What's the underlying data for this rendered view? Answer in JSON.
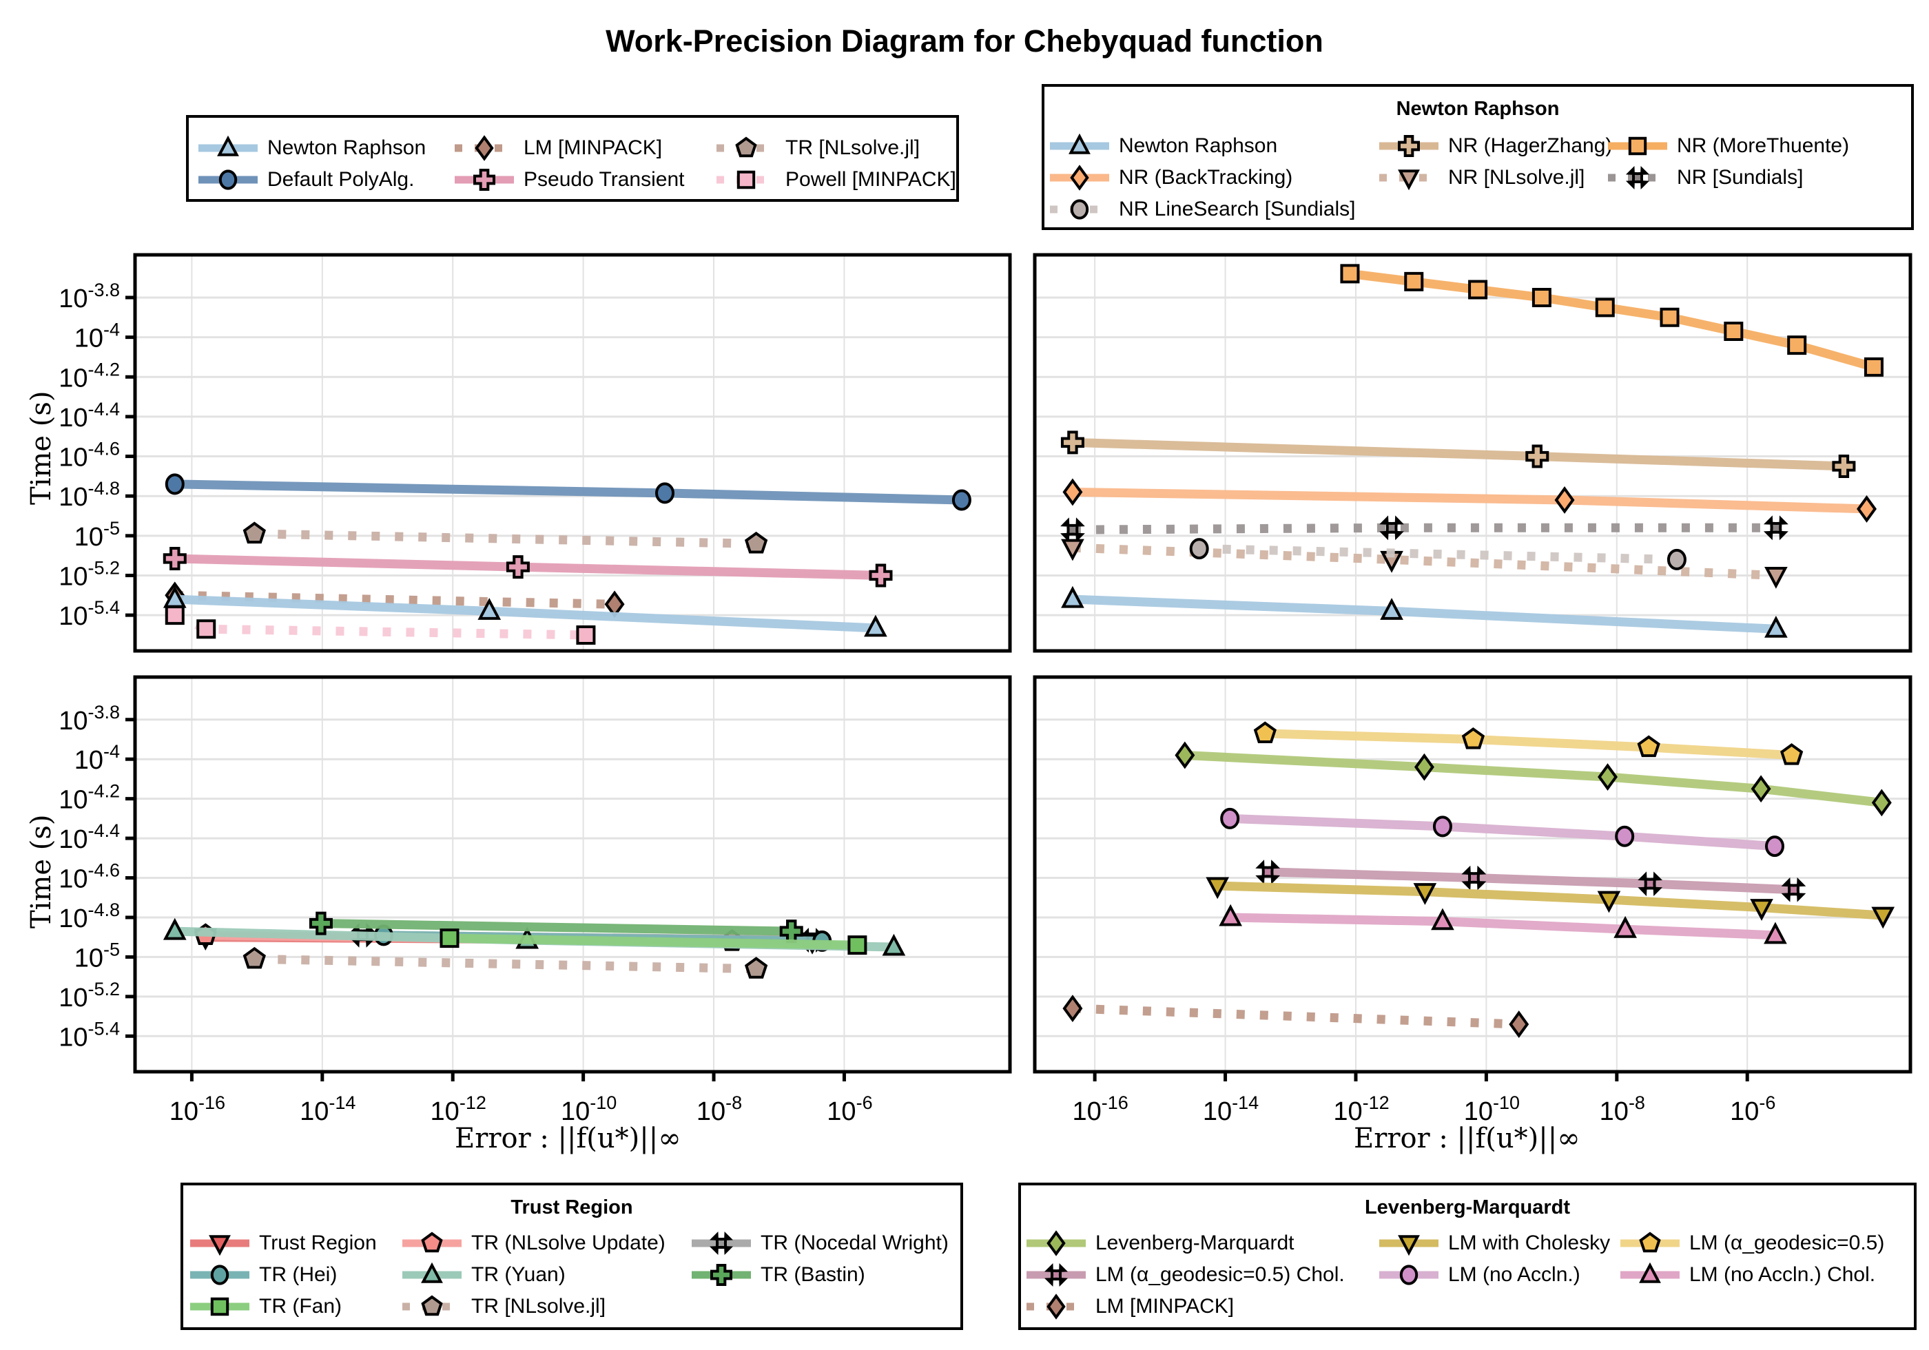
{
  "title": "Work-Precision Diagram for Chebyquad function",
  "axes": {
    "ylabel": "Time (s)",
    "xlabel": "Error : ||f(u*)||∞",
    "xticks": [
      -16,
      -14,
      -12,
      -10,
      -8,
      -6
    ],
    "yticks": [
      -3.8,
      -4,
      -4.2,
      -4.4,
      -4.6,
      -4.8,
      -5,
      -5.2,
      -5.4
    ]
  },
  "legends": {
    "general": {
      "title": "",
      "items": [
        {
          "label": "Newton Raphson",
          "series": "nr"
        },
        {
          "label": "LM [MINPACK]",
          "series": "lm_minpack"
        },
        {
          "label": "TR [NLsolve.jl]",
          "series": "tr_nlsolve"
        },
        {
          "label": "Default PolyAlg.",
          "series": "polyalg"
        },
        {
          "label": "Pseudo Transient",
          "series": "pseudo"
        },
        {
          "label": "Powell [MINPACK]",
          "series": "powell"
        }
      ]
    },
    "newton": {
      "title": "Newton Raphson",
      "items": [
        {
          "label": "Newton Raphson",
          "series": "nr"
        },
        {
          "label": "NR (HagerZhang)",
          "series": "nr_hz"
        },
        {
          "label": "NR (MoreThuente)",
          "series": "nr_mt"
        },
        {
          "label": "NR (BackTracking)",
          "series": "nr_bt"
        },
        {
          "label": "NR [NLsolve.jl]",
          "series": "nr_nlsolve"
        },
        {
          "label": "NR [Sundials]",
          "series": "nr_sundials"
        },
        {
          "label": "NR LineSearch [Sundials]",
          "series": "nr_ls_sundials"
        }
      ]
    },
    "trust": {
      "title": "Trust Region",
      "items": [
        {
          "label": "Trust Region",
          "series": "tr"
        },
        {
          "label": "TR (NLsolve Update)",
          "series": "tr_nlupdate"
        },
        {
          "label": "TR (Nocedal Wright)",
          "series": "tr_nw"
        },
        {
          "label": "TR (Hei)",
          "series": "tr_hei"
        },
        {
          "label": "TR (Yuan)",
          "series": "tr_yuan"
        },
        {
          "label": "TR (Bastin)",
          "series": "tr_bastin"
        },
        {
          "label": "TR (Fan)",
          "series": "tr_fan"
        },
        {
          "label": "TR [NLsolve.jl]",
          "series": "tr_nlsolve"
        }
      ]
    },
    "lm": {
      "title": "Levenberg-Marquardt",
      "items": [
        {
          "label": "Levenberg-Marquardt",
          "series": "lm"
        },
        {
          "label": "LM with Cholesky",
          "series": "lm_chol"
        },
        {
          "label": "LM (α_geodesic=0.5)",
          "series": "lm_geo"
        },
        {
          "label": "LM (α_geodesic=0.5) Chol.",
          "series": "lm_geo_chol"
        },
        {
          "label": "LM (no Accln.)",
          "series": "lm_noacc"
        },
        {
          "label": "LM (no Accln.) Chol.",
          "series": "lm_noacc_chol"
        },
        {
          "label": "LM [MINPACK]",
          "series": "lm_minpack"
        }
      ]
    }
  },
  "styles": {
    "nr": {
      "color": "#a6c8e0",
      "marker": "triangle-up",
      "dash": false
    },
    "polyalg": {
      "color": "#6f92b8",
      "fill": "#4e79a7",
      "marker": "circle",
      "dash": false
    },
    "lm_minpack": {
      "color": "#c09a8a",
      "fill": "#b08070",
      "marker": "diamond",
      "dash": true
    },
    "pseudo": {
      "color": "#e39db4",
      "marker": "cross",
      "dash": false
    },
    "tr_nlsolve": {
      "color": "#c9b0a6",
      "fill": "#b09a90",
      "marker": "pentagon",
      "dash": true
    },
    "powell": {
      "color": "#f8c8d6",
      "fill": "#f4b6c8",
      "marker": "square",
      "dash": true
    },
    "nr_hz": {
      "color": "#d8b894",
      "marker": "cross",
      "dash": false
    },
    "nr_mt": {
      "color": "#f6ae63",
      "marker": "square",
      "dash": false
    },
    "nr_bt": {
      "color": "#fbb88a",
      "fill": "#fbaa70",
      "marker": "diamond",
      "dash": false
    },
    "nr_nlsolve": {
      "color": "#d2b4a3",
      "fill": "#c4a090",
      "marker": "triangle-down",
      "dash": true
    },
    "nr_sundials": {
      "color": "#9b9494",
      "fill": "#8c8484",
      "marker": "x",
      "dash": true
    },
    "nr_ls_sundials": {
      "color": "#cfc6c3",
      "fill": "#b9b0ad",
      "marker": "circle",
      "dash": true
    },
    "tr": {
      "color": "#e87c7c",
      "fill": "#e66060",
      "marker": "triangle-down",
      "dash": false
    },
    "tr_nlupdate": {
      "color": "#f6a3a0",
      "fill": "#f48c88",
      "marker": "pentagon",
      "dash": false
    },
    "tr_nw": {
      "color": "#aaaaaa",
      "fill": "#999999",
      "marker": "x",
      "dash": false
    },
    "tr_hei": {
      "color": "#7ab3b3",
      "fill": "#60a3a3",
      "marker": "circle",
      "dash": false
    },
    "tr_yuan": {
      "color": "#9ccab8",
      "fill": "#7fbba6",
      "marker": "triangle-up",
      "dash": false
    },
    "tr_bastin": {
      "color": "#72b272",
      "fill": "#5aa85a",
      "marker": "cross",
      "dash": false
    },
    "tr_fan": {
      "color": "#8cce80",
      "fill": "#70c060",
      "marker": "square",
      "dash": false
    },
    "lm": {
      "color": "#b0c878",
      "fill": "#9cb85a",
      "marker": "diamond",
      "dash": false
    },
    "lm_chol": {
      "color": "#d4ba60",
      "fill": "#c8a830",
      "marker": "triangle-down",
      "dash": false
    },
    "lm_geo": {
      "color": "#f0d488",
      "fill": "#f0c050",
      "marker": "pentagon",
      "dash": false
    },
    "lm_geo_chol": {
      "color": "#c89cb0",
      "fill": "#c080a0",
      "marker": "x",
      "dash": false
    },
    "lm_noacc": {
      "color": "#d8b0d0",
      "fill": "#d090c8",
      "marker": "circle",
      "dash": false
    },
    "lm_noacc_chol": {
      "color": "#e0a6c6",
      "fill": "#e090b8",
      "marker": "triangle-up",
      "dash": false
    }
  },
  "chart_data": [
    {
      "type": "line",
      "panel": "top-left",
      "title": "",
      "xlabel": "",
      "ylabel": "Time (s)",
      "xscale": "log10",
      "yscale": "log10",
      "xlim_log10": [
        -16.87,
        -3.46
      ],
      "ylim_log10": [
        -3.585,
        -5.58
      ],
      "grid": true,
      "series": [
        {
          "name": "Default PolyAlg.",
          "key": "polyalg",
          "x_log10": [
            -16.26,
            -8.75,
            -4.2
          ],
          "y_log10": [
            -4.74,
            -4.785,
            -4.82
          ]
        },
        {
          "name": "TR [NLsolve.jl]",
          "key": "tr_nlsolve",
          "x_log10": [
            -15.04,
            -7.35
          ],
          "y_log10": [
            -4.99,
            -5.04
          ]
        },
        {
          "name": "Pseudo Transient",
          "key": "pseudo",
          "x_log10": [
            -16.26,
            -11.0,
            -5.44
          ],
          "y_log10": [
            -5.115,
            -5.157,
            -5.2
          ]
        },
        {
          "name": "LM [MINPACK]",
          "key": "lm_minpack",
          "x_log10": [
            -16.26,
            -9.52
          ],
          "y_log10": [
            -5.3,
            -5.345
          ]
        },
        {
          "name": "Newton Raphson",
          "key": "nr",
          "x_log10": [
            -16.26,
            -11.44,
            -5.52
          ],
          "y_log10": [
            -5.32,
            -5.38,
            -5.465
          ]
        },
        {
          "name": "Powell [MINPACK]",
          "key": "powell",
          "x_log10": [
            -16.26,
            -15.78,
            -9.96
          ],
          "y_log10": [
            -5.4,
            -5.47,
            -5.5
          ]
        }
      ]
    },
    {
      "type": "line",
      "panel": "top-right",
      "title": "",
      "xlabel": "",
      "ylabel": "",
      "xscale": "log10",
      "yscale": "log10",
      "xlim_log10": [
        -16.92,
        -3.5
      ],
      "ylim_log10": [
        -3.585,
        -5.58
      ],
      "grid": true,
      "series": [
        {
          "name": "NR (MoreThuente)",
          "key": "nr_mt",
          "x_log10": [
            -12.09,
            -11.11,
            -10.13,
            -9.15,
            -8.18,
            -7.19,
            -6.21,
            -5.24,
            -4.06
          ],
          "y_log10": [
            -3.68,
            -3.72,
            -3.76,
            -3.8,
            -3.85,
            -3.9,
            -3.97,
            -4.04,
            -4.15
          ]
        },
        {
          "name": "NR (HagerZhang)",
          "key": "nr_hz",
          "x_log10": [
            -16.34,
            -9.22,
            -4.52
          ],
          "y_log10": [
            -4.53,
            -4.6,
            -4.65
          ]
        },
        {
          "name": "NR (BackTracking)",
          "key": "nr_bt",
          "x_log10": [
            -16.34,
            -8.8,
            -4.17
          ],
          "y_log10": [
            -4.78,
            -4.82,
            -4.865
          ]
        },
        {
          "name": "NR [Sundials]",
          "key": "nr_sundials",
          "x_log10": [
            -16.34,
            -11.45,
            -5.56
          ],
          "y_log10": [
            -4.97,
            -4.96,
            -4.96
          ]
        },
        {
          "name": "NR [NLsolve.jl]",
          "key": "nr_nlsolve",
          "x_log10": [
            -16.34,
            -11.45,
            -5.56
          ],
          "y_log10": [
            -5.06,
            -5.12,
            -5.2
          ]
        },
        {
          "name": "NR LineSearch [Sundials]",
          "key": "nr_ls_sundials",
          "x_log10": [
            -14.4,
            -7.08
          ],
          "y_log10": [
            -5.065,
            -5.12
          ]
        },
        {
          "name": "Newton Raphson",
          "key": "nr",
          "x_log10": [
            -16.34,
            -11.45,
            -5.56
          ],
          "y_log10": [
            -5.32,
            -5.38,
            -5.47
          ]
        }
      ]
    },
    {
      "type": "line",
      "panel": "bottom-left",
      "title": "",
      "xlabel": "Error : ||f(u*)||∞",
      "ylabel": "Time (s)",
      "xscale": "log10",
      "yscale": "log10",
      "xlim_log10": [
        -16.87,
        -3.46
      ],
      "ylim_log10": [
        -3.585,
        -5.58
      ],
      "grid": true,
      "series": [
        {
          "name": "Trust Region",
          "key": "tr",
          "x_log10": [
            -15.79,
            -6.49
          ],
          "y_log10": [
            -4.9,
            -4.92
          ]
        },
        {
          "name": "TR (NLsolve Update)",
          "key": "tr_nlupdate",
          "x_log10": [
            -15.79,
            -7.72
          ],
          "y_log10": [
            -4.89,
            -4.92
          ]
        },
        {
          "name": "TR (Nocedal Wright)",
          "key": "tr_nw",
          "x_log10": [
            -13.38,
            -6.49
          ],
          "y_log10": [
            -4.89,
            -4.915
          ]
        },
        {
          "name": "TR (Hei)",
          "key": "tr_hei",
          "x_log10": [
            -13.06,
            -6.34
          ],
          "y_log10": [
            -4.89,
            -4.92
          ]
        },
        {
          "name": "TR (Yuan)",
          "key": "tr_yuan",
          "x_log10": [
            -16.26,
            -10.86,
            -5.24
          ],
          "y_log10": [
            -4.87,
            -4.915,
            -4.95
          ]
        },
        {
          "name": "TR (Bastin)",
          "key": "tr_bastin",
          "x_log10": [
            -14.02,
            -6.81
          ],
          "y_log10": [
            -4.83,
            -4.87
          ]
        },
        {
          "name": "TR (Fan)",
          "key": "tr_fan",
          "x_log10": [
            -12.05,
            -5.8
          ],
          "y_log10": [
            -4.905,
            -4.94
          ]
        },
        {
          "name": "TR [NLsolve.jl]",
          "key": "tr_nlsolve",
          "x_log10": [
            -15.04,
            -7.35
          ],
          "y_log10": [
            -5.01,
            -5.06
          ]
        }
      ]
    },
    {
      "type": "line",
      "panel": "bottom-right",
      "title": "",
      "xlabel": "Error : ||f(u*)||∞",
      "ylabel": "",
      "xscale": "log10",
      "yscale": "log10",
      "xlim_log10": [
        -16.92,
        -3.5
      ],
      "ylim_log10": [
        -3.585,
        -5.58
      ],
      "grid": true,
      "series": [
        {
          "name": "LM (α_geodesic=0.5)",
          "key": "lm_geo",
          "x_log10": [
            -13.39,
            -10.2,
            -7.51,
            -5.32
          ],
          "y_log10": [
            -3.87,
            -3.9,
            -3.94,
            -3.98
          ]
        },
        {
          "name": "Levenberg-Marquardt",
          "key": "lm",
          "x_log10": [
            -14.62,
            -10.95,
            -8.14,
            -5.79,
            -3.94
          ],
          "y_log10": [
            -3.98,
            -4.04,
            -4.09,
            -4.15,
            -4.22
          ]
        },
        {
          "name": "LM (no Accln.)",
          "key": "lm_noacc",
          "x_log10": [
            -13.93,
            -10.67,
            -7.88,
            -5.58
          ],
          "y_log10": [
            -4.3,
            -4.34,
            -4.39,
            -4.44
          ]
        },
        {
          "name": "LM (α_geodesic=0.5) Chol.",
          "key": "lm_geo_chol",
          "x_log10": [
            -13.35,
            -10.19,
            -7.49,
            -5.29
          ],
          "y_log10": [
            -4.57,
            -4.6,
            -4.63,
            -4.66
          ]
        },
        {
          "name": "LM with Cholesky",
          "key": "lm_chol",
          "x_log10": [
            -14.12,
            -10.94,
            -8.12,
            -5.78,
            -3.92
          ],
          "y_log10": [
            -4.64,
            -4.67,
            -4.71,
            -4.75,
            -4.79
          ]
        },
        {
          "name": "LM (no Accln.) Chol.",
          "key": "lm_noacc_chol",
          "x_log10": [
            -13.92,
            -10.67,
            -7.87,
            -5.57
          ],
          "y_log10": [
            -4.8,
            -4.82,
            -4.86,
            -4.89
          ]
        },
        {
          "name": "LM [MINPACK]",
          "key": "lm_minpack",
          "x_log10": [
            -16.34,
            -9.5
          ],
          "y_log10": [
            -5.26,
            -5.34
          ]
        }
      ]
    }
  ]
}
